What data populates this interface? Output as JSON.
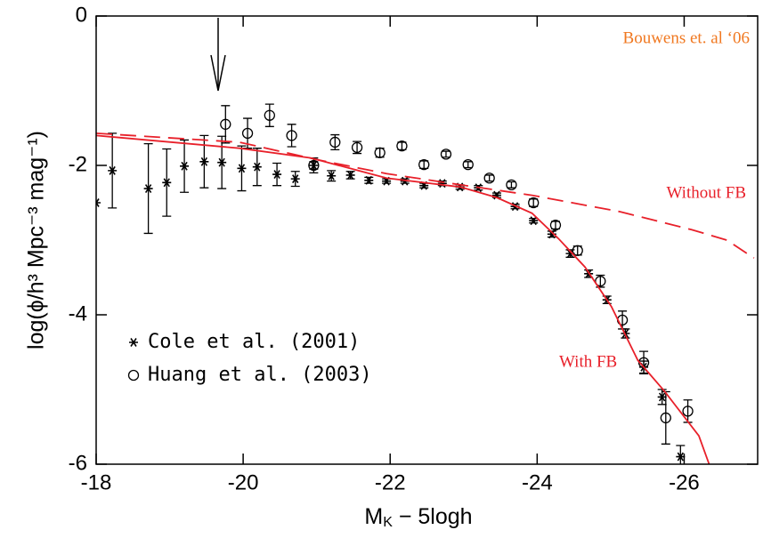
{
  "chart_data": {
    "type": "scatter",
    "y_label": "log(ϕ/h³ Mpc⁻³ mag⁻¹)",
    "x_label": {
      "main": "M",
      "sub": "K",
      "rest": " − 5logh"
    },
    "annotations": [
      "Bouwens et. al ‘06"
    ],
    "xlim": [
      -18,
      -27
    ],
    "xticks": [
      -18,
      -20,
      -22,
      -24,
      -26
    ],
    "ylim": [
      -6,
      0
    ],
    "yticks": [
      -6,
      -4,
      -2,
      0
    ],
    "legend": "lower left",
    "series": [
      {
        "name": "Cole et al. (2001)",
        "type": "scatter",
        "marker": "star",
        "color": "#000000",
        "x": [
          -18.0,
          -18.22,
          -18.71,
          -18.96,
          -19.2,
          -19.47,
          -19.71,
          -19.98,
          -20.19,
          -20.46,
          -20.71,
          -20.96,
          -21.2,
          -21.46,
          -21.71,
          -21.95,
          -22.2,
          -22.46,
          -22.71,
          -22.95,
          -23.2,
          -23.45,
          -23.7,
          -23.95,
          -24.2,
          -24.45,
          -24.7,
          -24.95,
          -25.2,
          -25.45,
          -25.7,
          -25.95
        ],
        "values": [
          -2.5,
          -2.07,
          -2.31,
          -2.23,
          -2.01,
          -1.95,
          -1.96,
          -2.04,
          -2.02,
          -2.12,
          -2.18,
          -2.0,
          -2.14,
          -2.13,
          -2.2,
          -2.21,
          -2.21,
          -2.27,
          -2.24,
          -2.29,
          -2.3,
          -2.4,
          -2.55,
          -2.74,
          -2.92,
          -3.18,
          -3.45,
          -3.8,
          -4.25,
          -4.7,
          -5.1,
          -5.9
        ],
        "errors": [
          0.0,
          0.5,
          0.6,
          0.45,
          0.35,
          0.35,
          0.35,
          0.3,
          0.25,
          0.15,
          0.1,
          0.05,
          0.07,
          0.05,
          0.04,
          0.03,
          0.03,
          0.03,
          0.03,
          0.03,
          0.03,
          0.03,
          0.03,
          0.03,
          0.04,
          0.05,
          0.05,
          0.05,
          0.06,
          0.08,
          0.1,
          0.15
        ]
      },
      {
        "name": "Huang et al. (2003)",
        "type": "scatter",
        "marker": "circle",
        "color": "#000000",
        "x": [
          -19.76,
          -20.06,
          -20.36,
          -20.66,
          -20.96,
          -21.25,
          -21.55,
          -21.86,
          -22.16,
          -22.46,
          -22.76,
          -23.06,
          -23.35,
          -23.65,
          -23.95,
          -24.25,
          -24.55,
          -24.86,
          -25.16,
          -25.45,
          -25.75,
          -26.05
        ],
        "values": [
          -1.45,
          -1.57,
          -1.33,
          -1.6,
          -2.0,
          -1.69,
          -1.76,
          -1.83,
          -1.74,
          -1.99,
          -1.85,
          -1.99,
          -2.17,
          -2.26,
          -2.5,
          -2.8,
          -3.14,
          -3.55,
          -4.07,
          -4.64,
          -5.38,
          -5.29
        ],
        "errors": [
          0.25,
          0.2,
          0.15,
          0.15,
          0.1,
          0.1,
          0.08,
          0.06,
          0.05,
          0.05,
          0.04,
          0.04,
          0.04,
          0.04,
          0.05,
          0.05,
          0.06,
          0.08,
          0.12,
          0.15,
          0.35,
          0.15
        ]
      },
      {
        "name": "With FB",
        "type": "line",
        "dash": false,
        "color": "#e8202a",
        "x": [
          -18.0,
          -19.95,
          -20.92,
          -21.95,
          -22.96,
          -23.45,
          -23.93,
          -24.29,
          -24.65,
          -25.01,
          -25.37,
          -25.73,
          -26.2,
          -26.34
        ],
        "values": [
          -1.6,
          -1.77,
          -1.9,
          -2.17,
          -2.29,
          -2.43,
          -2.64,
          -2.98,
          -3.36,
          -3.89,
          -4.61,
          -5.02,
          -5.62,
          -6.0
        ]
      },
      {
        "name": "Without FB",
        "type": "line",
        "dash": true,
        "color": "#e8202a",
        "x": [
          -18.0,
          -19.95,
          -21.04,
          -21.95,
          -22.96,
          -23.93,
          -25.13,
          -26.1,
          -26.58,
          -26.95
        ],
        "values": [
          -1.57,
          -1.69,
          -1.93,
          -2.11,
          -2.26,
          -2.4,
          -2.62,
          -2.86,
          -3.0,
          -3.24
        ]
      }
    ]
  }
}
